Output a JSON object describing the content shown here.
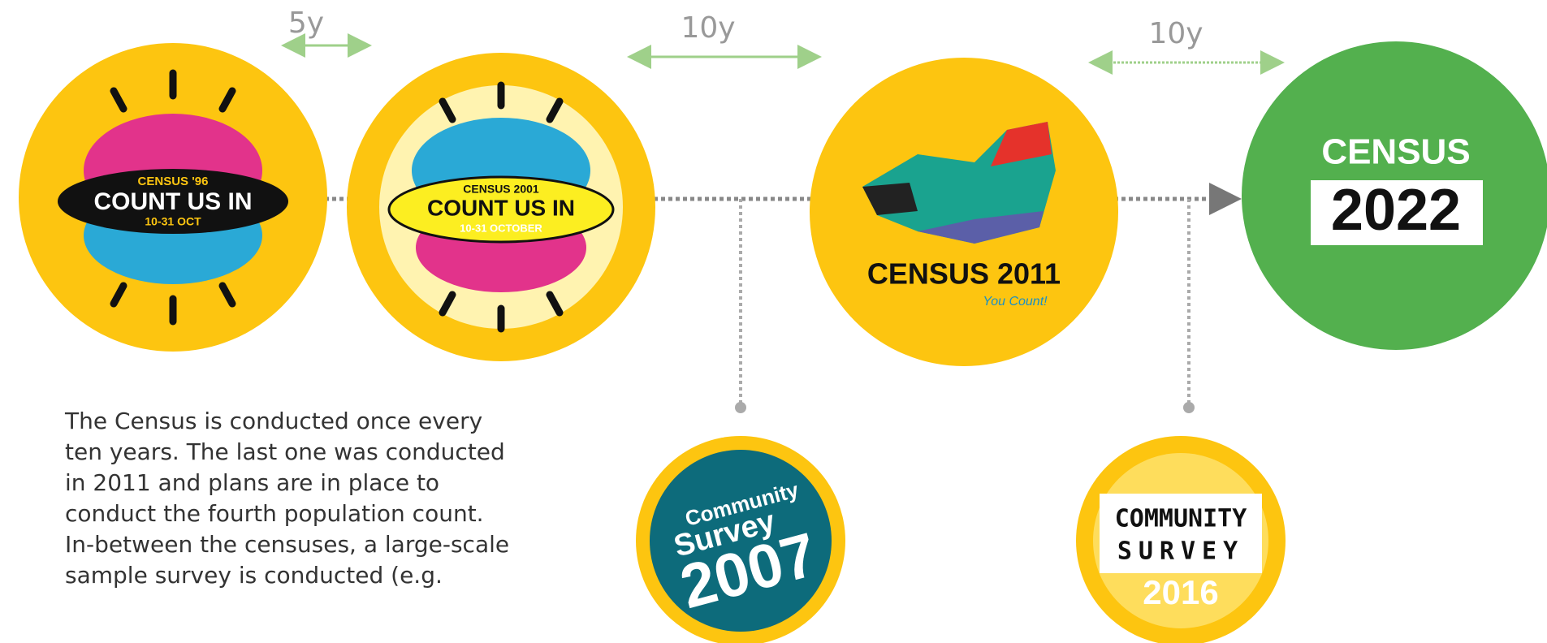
{
  "intervals": [
    "5y",
    "10y",
    "10y"
  ],
  "logos": [
    {
      "lines": [
        "CENSUS '96",
        "COUNT US IN",
        "10-31 OCT"
      ]
    },
    {
      "lines": [
        "CENSUS 2001",
        "COUNT US IN",
        "10-31 OCTOBER"
      ]
    },
    {
      "lines": [
        "CENSUS 2011",
        "You Count!"
      ]
    },
    {
      "lines": [
        "CENSUS",
        "2022"
      ]
    },
    {
      "lines": [
        "Community",
        "Survey",
        "2007"
      ]
    },
    {
      "lines": [
        "COMMUNITY",
        "SURVEY",
        "2016"
      ]
    }
  ],
  "description": [
    "The Census is conducted once every",
    "ten years. The last one was conducted",
    "in 2011 and plans are in place to",
    "conduct the fourth population count.",
    "In-between the censuses, a large-scale",
    "sample survey is conducted (e.g."
  ]
}
